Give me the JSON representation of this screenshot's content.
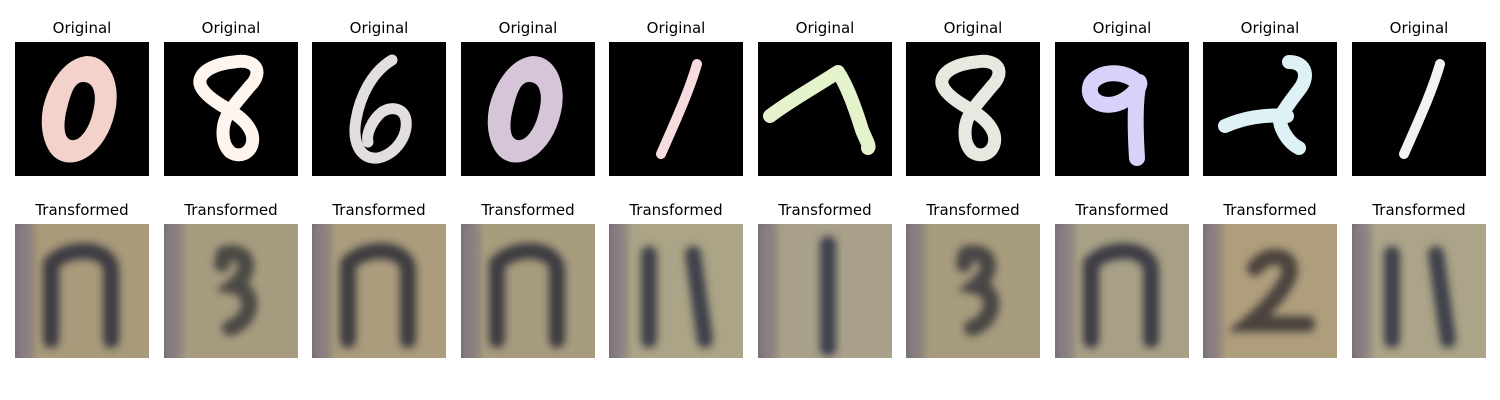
{
  "rows": [
    {
      "kind": "original",
      "title": "Original",
      "cells": [
        {
          "digit": "0",
          "stroke": "#f4d2cc"
        },
        {
          "digit": "8",
          "stroke": "#fdf5ee"
        },
        {
          "digit": "6",
          "stroke": "#e2dede"
        },
        {
          "digit": "0",
          "stroke": "#d6c4d8"
        },
        {
          "digit": "1",
          "stroke": "#f6dcde"
        },
        {
          "digit": "7",
          "stroke": "#e4f3cb"
        },
        {
          "digit": "8",
          "stroke": "#e8e8e0"
        },
        {
          "digit": "9",
          "stroke": "#d8d2fa"
        },
        {
          "digit": "2",
          "stroke": "#def2f6"
        },
        {
          "digit": "1",
          "stroke": "#f2f2f2"
        }
      ]
    },
    {
      "kind": "transformed",
      "title": "Transformed",
      "cells": [
        {
          "glyph": "n",
          "background": "#a89a7a",
          "ink": "#2c2a3a"
        },
        {
          "glyph": "3",
          "background": "#a89c80",
          "ink": "#3a3838"
        },
        {
          "glyph": "n",
          "background": "#aa9c7c",
          "ink": "#2c2a36"
        },
        {
          "glyph": "n",
          "background": "#a89c7e",
          "ink": "#2c2a36"
        },
        {
          "glyph": "ll",
          "background": "#aca486",
          "ink": "#2a3040"
        },
        {
          "glyph": "l",
          "background": "#a8a088",
          "ink": "#2a3042"
        },
        {
          "glyph": "3",
          "background": "#a89c7e",
          "ink": "#363638"
        },
        {
          "glyph": "n",
          "background": "#a8a086",
          "ink": "#2c2c38"
        },
        {
          "glyph": "2",
          "background": "#ae9e7c",
          "ink": "#3a3434"
        },
        {
          "glyph": "ll",
          "background": "#aca488",
          "ink": "#2a3040"
        }
      ]
    }
  ]
}
